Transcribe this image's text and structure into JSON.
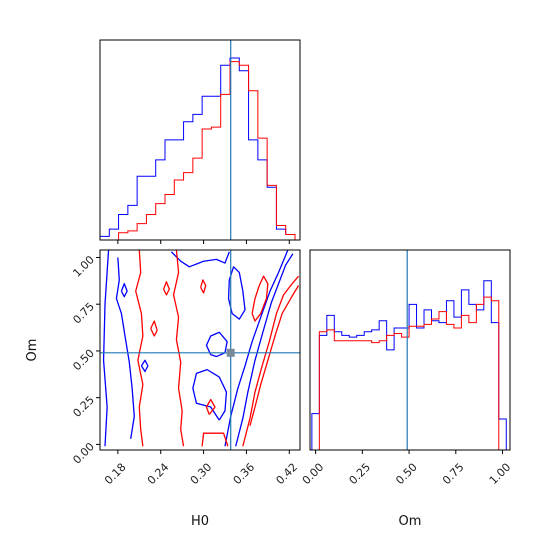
{
  "chart_data": {
    "type": "corner",
    "parameters": [
      "H0",
      "Om"
    ],
    "axis_labels": {
      "H0": "H0",
      "Om": "Om"
    },
    "truth": {
      "H0": 0.338,
      "Om": 0.49
    },
    "colors": {
      "blue": "#0000ff",
      "red": "#ff0000",
      "truth_line": "#1f77b4",
      "truth_marker": "#7a8a9a"
    },
    "H0_ticks": [
      "0.18",
      "0.24",
      "0.30",
      "0.36",
      "0.42"
    ],
    "H0_tick_values": [
      0.18,
      0.24,
      0.3,
      0.36,
      0.42
    ],
    "Om_ticks": [
      "0.00",
      "0.25",
      "0.50",
      "0.75",
      "1.00"
    ],
    "Om_tick_values": [
      0.0,
      0.25,
      0.5,
      0.75,
      1.0
    ],
    "H0_range": [
      0.155,
      0.435
    ],
    "Om_range": [
      -0.03,
      1.04
    ],
    "H0_hist": {
      "bin_edges": [
        0.155,
        0.168,
        0.181,
        0.194,
        0.207,
        0.22,
        0.233,
        0.246,
        0.259,
        0.272,
        0.285,
        0.298,
        0.311,
        0.324,
        0.337,
        0.35,
        0.363,
        0.376,
        0.389,
        0.402,
        0.415,
        0.428
      ],
      "series": [
        {
          "color": "blue",
          "values": [
            0.02,
            0.06,
            0.14,
            0.19,
            0.35,
            0.35,
            0.44,
            0.55,
            0.55,
            0.65,
            0.69,
            0.79,
            0.79,
            0.96,
            1.0,
            0.93,
            0.55,
            0.44,
            0.29,
            0.06,
            0.03
          ]
        },
        {
          "color": "red",
          "values": [
            0.0,
            0.0,
            0.04,
            0.05,
            0.09,
            0.14,
            0.2,
            0.25,
            0.33,
            0.37,
            0.45,
            0.61,
            0.62,
            0.8,
            0.98,
            0.96,
            0.82,
            0.56,
            0.3,
            0.08,
            0.03
          ]
        }
      ]
    },
    "Om_hist": {
      "bin_edges": [
        -0.02,
        0.02,
        0.06,
        0.1,
        0.14,
        0.18,
        0.22,
        0.26,
        0.3,
        0.34,
        0.38,
        0.42,
        0.46,
        0.5,
        0.54,
        0.58,
        0.62,
        0.66,
        0.7,
        0.74,
        0.78,
        0.82,
        0.86,
        0.9,
        0.94,
        0.98,
        1.02
      ],
      "series": [
        {
          "color": "blue",
          "values": [
            0.2,
            0.63,
            0.74,
            0.65,
            0.63,
            0.62,
            0.63,
            0.65,
            0.66,
            0.71,
            0.55,
            0.67,
            0.67,
            0.8,
            0.67,
            0.77,
            0.71,
            0.7,
            0.82,
            0.73,
            0.88,
            0.8,
            0.77,
            0.93,
            0.7,
            0.17
          ]
        },
        {
          "color": "red",
          "values": [
            0.0,
            0.65,
            0.66,
            0.6,
            0.6,
            0.6,
            0.6,
            0.6,
            0.59,
            0.6,
            0.63,
            0.64,
            0.62,
            0.68,
            0.68,
            0.69,
            0.72,
            0.76,
            0.69,
            0.67,
            0.74,
            0.7,
            0.8,
            0.84,
            0.82,
            0.0
          ]
        }
      ]
    },
    "contours_2d": [
      {
        "color": "blue",
        "paths": [
          [
            [
              0.162,
              -0.01
            ],
            [
              0.165,
              0.2
            ],
            [
              0.16,
              0.45
            ],
            [
              0.162,
              0.75
            ],
            [
              0.167,
              1.04
            ]
          ],
          [
            [
              0.33,
              -0.01
            ],
            [
              0.338,
              0.15
            ],
            [
              0.348,
              0.3
            ],
            [
              0.358,
              0.42
            ],
            [
              0.368,
              0.55
            ],
            [
              0.38,
              0.68
            ],
            [
              0.393,
              0.82
            ],
            [
              0.405,
              0.92
            ],
            [
              0.418,
              1.04
            ]
          ],
          [
            [
              0.18,
              1.0
            ],
            [
              0.182,
              0.88
            ],
            [
              0.178,
              0.78
            ],
            [
              0.185,
              0.7
            ],
            [
              0.19,
              0.58
            ],
            [
              0.196,
              0.44
            ],
            [
              0.2,
              0.3
            ],
            [
              0.203,
              0.15
            ],
            [
              0.198,
              0.03
            ]
          ],
          [
            [
              0.345,
              -0.01
            ],
            [
              0.355,
              0.14
            ],
            [
              0.362,
              0.28
            ],
            [
              0.372,
              0.45
            ],
            [
              0.383,
              0.6
            ],
            [
              0.395,
              0.76
            ],
            [
              0.405,
              0.86
            ],
            [
              0.415,
              0.96
            ],
            [
              0.425,
              1.02
            ]
          ],
          [
            [
              0.322,
              0.13
            ],
            [
              0.31,
              0.2
            ],
            [
              0.29,
              0.22
            ],
            [
              0.285,
              0.3
            ],
            [
              0.29,
              0.38
            ],
            [
              0.305,
              0.4
            ],
            [
              0.322,
              0.36
            ],
            [
              0.332,
              0.28
            ],
            [
              0.33,
              0.18
            ],
            [
              0.322,
              0.13
            ]
          ],
          [
            [
              0.31,
              0.48
            ],
            [
              0.304,
              0.53
            ],
            [
              0.31,
              0.58
            ],
            [
              0.322,
              0.6
            ],
            [
              0.333,
              0.55
            ],
            [
              0.33,
              0.49
            ],
            [
              0.318,
              0.47
            ],
            [
              0.31,
              0.48
            ]
          ],
          [
            [
              0.255,
              1.03
            ],
            [
              0.268,
              0.98
            ],
            [
              0.28,
              0.95
            ],
            [
              0.3,
              0.98
            ],
            [
              0.318,
              0.99
            ],
            [
              0.33,
              0.97
            ],
            [
              0.336,
              1.03
            ]
          ],
          [
            [
              0.335,
              0.78
            ],
            [
              0.34,
              0.7
            ],
            [
              0.35,
              0.67
            ],
            [
              0.358,
              0.72
            ],
            [
              0.355,
              0.82
            ],
            [
              0.35,
              0.92
            ],
            [
              0.342,
              0.95
            ],
            [
              0.336,
              0.88
            ],
            [
              0.335,
              0.78
            ]
          ],
          [
            [
              0.185,
              0.82
            ],
            [
              0.189,
              0.86
            ],
            [
              0.193,
              0.82
            ],
            [
              0.189,
              0.79
            ],
            [
              0.185,
              0.82
            ]
          ],
          [
            [
              0.213,
              0.42
            ],
            [
              0.218,
              0.45
            ],
            [
              0.222,
              0.42
            ],
            [
              0.218,
              0.39
            ],
            [
              0.213,
              0.42
            ]
          ]
        ]
      },
      {
        "color": "red",
        "paths": [
          [
            [
              0.21,
              1.04
            ],
            [
              0.212,
              0.92
            ],
            [
              0.205,
              0.82
            ],
            [
              0.213,
              0.7
            ],
            [
              0.215,
              0.58
            ],
            [
              0.208,
              0.45
            ],
            [
              0.215,
              0.32
            ],
            [
              0.21,
              0.2
            ],
            [
              0.212,
              0.08
            ],
            [
              0.215,
              -0.01
            ]
          ],
          [
            [
              0.262,
              1.04
            ],
            [
              0.265,
              0.92
            ],
            [
              0.258,
              0.8
            ],
            [
              0.265,
              0.68
            ],
            [
              0.262,
              0.56
            ],
            [
              0.268,
              0.44
            ],
            [
              0.265,
              0.3
            ],
            [
              0.27,
              0.18
            ],
            [
              0.268,
              0.08
            ],
            [
              0.272,
              -0.01
            ]
          ],
          [
            [
              0.298,
              -0.01
            ],
            [
              0.3,
              0.06
            ],
            [
              0.328,
              0.06
            ],
            [
              0.334,
              -0.01
            ]
          ],
          [
            [
              0.355,
              -0.01
            ],
            [
              0.365,
              0.14
            ],
            [
              0.372,
              0.28
            ],
            [
              0.382,
              0.42
            ],
            [
              0.392,
              0.55
            ],
            [
              0.402,
              0.7
            ],
            [
              0.412,
              0.8
            ],
            [
              0.424,
              0.86
            ],
            [
              0.433,
              0.9
            ]
          ],
          [
            [
              0.365,
              0.1
            ],
            [
              0.372,
              0.2
            ],
            [
              0.38,
              0.32
            ],
            [
              0.39,
              0.45
            ],
            [
              0.4,
              0.58
            ],
            [
              0.41,
              0.7
            ],
            [
              0.425,
              0.8
            ],
            [
              0.433,
              0.85
            ]
          ],
          [
            [
              0.368,
              0.7
            ],
            [
              0.372,
              0.78
            ],
            [
              0.378,
              0.85
            ],
            [
              0.384,
              0.9
            ],
            [
              0.39,
              0.86
            ],
            [
              0.388,
              0.78
            ],
            [
              0.38,
              0.7
            ],
            [
              0.372,
              0.66
            ],
            [
              0.368,
              0.7
            ]
          ],
          [
            [
              0.308,
              0.16
            ],
            [
              0.304,
              0.2
            ],
            [
              0.31,
              0.24
            ],
            [
              0.316,
              0.2
            ],
            [
              0.308,
              0.16
            ]
          ],
          [
            [
              0.244,
              0.83
            ],
            [
              0.248,
              0.87
            ],
            [
              0.252,
              0.83
            ],
            [
              0.248,
              0.8
            ],
            [
              0.244,
              0.83
            ]
          ],
          [
            [
              0.226,
              0.62
            ],
            [
              0.231,
              0.66
            ],
            [
              0.235,
              0.61
            ],
            [
              0.231,
              0.58
            ],
            [
              0.226,
              0.62
            ]
          ],
          [
            [
              0.296,
              0.84
            ],
            [
              0.299,
              0.88
            ],
            [
              0.303,
              0.85
            ],
            [
              0.3,
              0.81
            ],
            [
              0.296,
              0.84
            ]
          ]
        ]
      }
    ]
  }
}
